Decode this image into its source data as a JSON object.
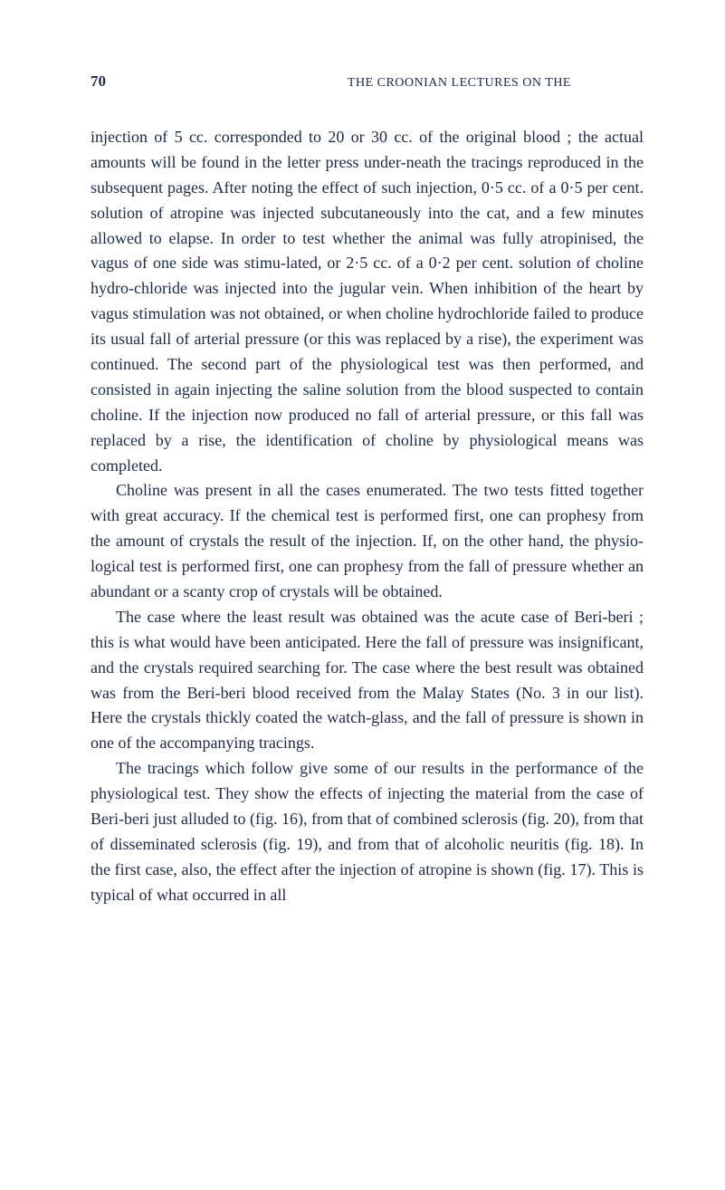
{
  "page": {
    "number": "70",
    "running_head": "THE CROONIAN LECTURES ON THE"
  },
  "paragraphs": {
    "p1": "injection of 5 cc. corresponded to 20 or 30 cc. of the original blood ; the actual amounts will be found in the letter press under-neath the tracings reproduced in the subsequent pages. After noting the effect of such injection, 0·5 cc. of a 0·5 per cent. solution of atropine was injected subcutaneously into the cat, and a few minutes allowed to elapse. In order to test whether the animal was fully atropinised, the vagus of one side was stimu-lated, or 2·5 cc. of a 0·2 per cent. solution of choline hydro-chloride was injected into the jugular vein. When inhibition of the heart by vagus stimulation was not obtained, or when choline hydrochloride failed to produce its usual fall of arterial pressure (or this was replaced by a rise), the experiment was continued. The second part of the physiological test was then performed, and consisted in again injecting the saline solution from the blood suspected to contain choline. If the injection now produced no fall of arterial pressure, or this fall was replaced by a rise, the identification of choline by physiological means was completed.",
    "p2": "Choline was present in all the cases enumerated. The two tests fitted together with great accuracy. If the chemical test is performed first, one can prophesy from the amount of crystals the result of the injection. If, on the other hand, the physio-logical test is performed first, one can prophesy from the fall of pressure whether an abundant or a scanty crop of crystals will be obtained.",
    "p3": "The case where the least result was obtained was the acute case of Beri-beri ; this is what would have been anticipated. Here the fall of pressure was insignificant, and the crystals required searching for. The case where the best result was obtained was from the Beri-beri blood received from the Malay States (No. 3 in our list). Here the crystals thickly coated the watch-glass, and the fall of pressure is shown in one of the accompanying tracings.",
    "p4": "The tracings which follow give some of our results in the performance of the physiological test. They show the effects of injecting the material from the case of Beri-beri just alluded to (fig. 16), from that of combined sclerosis (fig. 20), from that of disseminated sclerosis (fig. 19), and from that of alcoholic neuritis (fig. 18). In the first case, also, the effect after the injection of atropine is shown (fig. 17). This is typical of what occurred in all"
  },
  "styling": {
    "background_color": "#ffffff",
    "text_color": "#1a2a4a",
    "body_fontsize": 18,
    "body_lineheight": 1.55,
    "page_number_fontsize": 17,
    "running_head_fontsize": 14,
    "font_family": "Georgia, 'Times New Roman', serif"
  }
}
